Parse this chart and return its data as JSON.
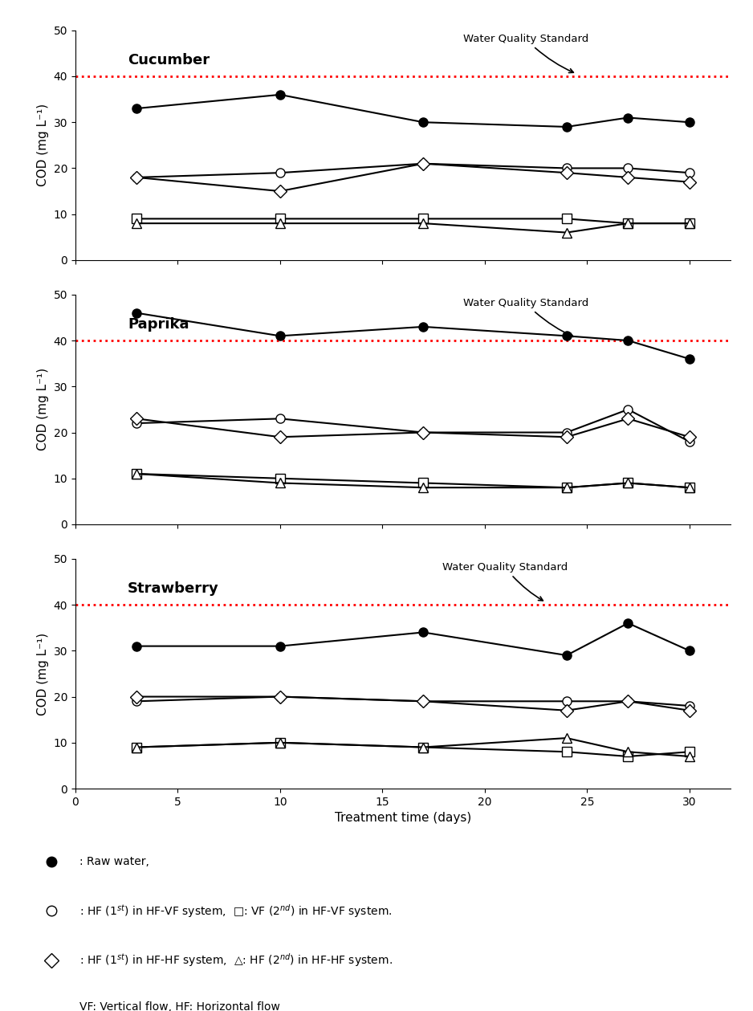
{
  "x": [
    3,
    10,
    17,
    24,
    27,
    30
  ],
  "cucumber": {
    "raw_water": [
      33,
      36,
      30,
      29,
      31,
      30
    ],
    "hf_vf_hf": [
      18,
      19,
      21,
      20,
      20,
      19
    ],
    "vf_2nd": [
      9,
      9,
      9,
      9,
      8,
      8
    ],
    "hf_hf_1st": [
      18,
      15,
      21,
      19,
      18,
      17
    ],
    "hf_hf_2nd": [
      8,
      8,
      8,
      6,
      8,
      8
    ]
  },
  "paprika": {
    "raw_water": [
      46,
      41,
      43,
      41,
      40,
      36
    ],
    "hf_vf_hf": [
      22,
      23,
      20,
      20,
      25,
      18
    ],
    "vf_2nd": [
      11,
      10,
      9,
      8,
      9,
      8
    ],
    "hf_hf_1st": [
      23,
      19,
      20,
      19,
      23,
      19
    ],
    "hf_hf_2nd": [
      11,
      9,
      8,
      8,
      9,
      8
    ]
  },
  "strawberry": {
    "raw_water": [
      31,
      31,
      34,
      29,
      36,
      30
    ],
    "hf_vf_hf": [
      19,
      20,
      19,
      19,
      19,
      18
    ],
    "vf_2nd": [
      9,
      10,
      9,
      8,
      7,
      8
    ],
    "hf_hf_1st": [
      20,
      20,
      19,
      17,
      19,
      17
    ],
    "hf_hf_2nd": [
      9,
      10,
      9,
      11,
      8,
      7
    ]
  },
  "wqs_y": 40,
  "ylim": [
    0,
    50
  ],
  "yticks": [
    0,
    10,
    20,
    30,
    40,
    50
  ],
  "xlim": [
    0,
    32
  ],
  "xticks": [
    0,
    5,
    10,
    15,
    20,
    25,
    30
  ],
  "xlabel": "Treatment time (days)",
  "ylabel": "COD (mg L⁻¹)",
  "subplot_titles": [
    "Cucumber",
    "Paprika",
    "Strawberry"
  ],
  "wqs_label": "Water Quality Standard",
  "wqs_color": "red",
  "line_color": "black",
  "background_color": "white",
  "title_fontsize": 13,
  "label_fontsize": 11,
  "tick_fontsize": 10,
  "legend_fontsize": 10
}
